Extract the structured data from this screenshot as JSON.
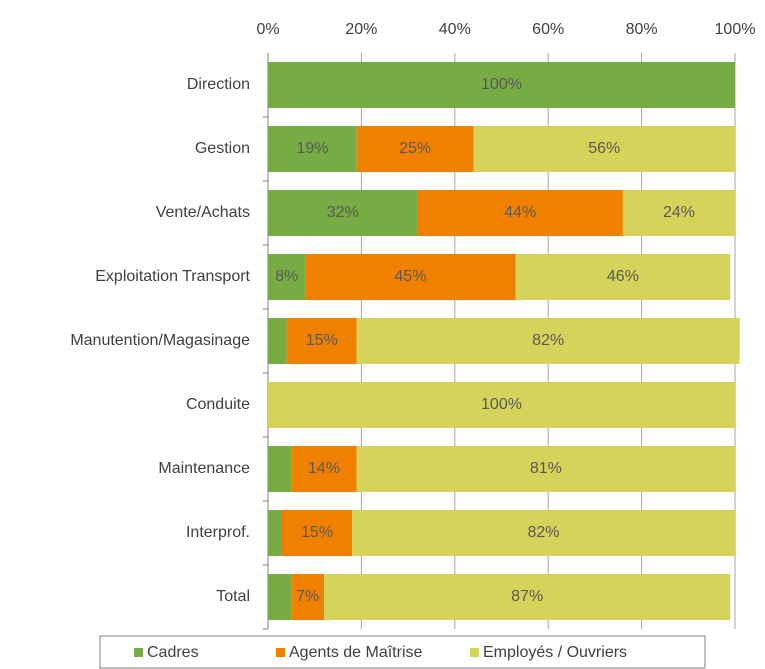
{
  "chart_data": {
    "type": "stacked-barh",
    "categories": [
      "Direction",
      "Gestion",
      "Vente/Achats",
      "Exploitation Transport",
      "Manutention/Magasinage",
      "Conduite",
      "Maintenance",
      "Interprof.",
      "Total"
    ],
    "series": [
      {
        "name": "Cadres",
        "color": "#77ab43",
        "values": [
          100,
          19,
          32,
          8,
          4,
          0,
          5,
          3,
          5
        ],
        "value_labels": [
          "100%",
          "19%",
          "32%",
          "8%",
          null,
          null,
          null,
          null,
          null
        ]
      },
      {
        "name": "Agents de Maîtrise",
        "color": "#f08000",
        "values": [
          0,
          25,
          44,
          45,
          15,
          0,
          14,
          15,
          7
        ],
        "value_labels": [
          null,
          "25%",
          "44%",
          "45%",
          "15%",
          null,
          "14%",
          "15%",
          "7%"
        ]
      },
      {
        "name": "Employés / Ouvriers",
        "color": "#d4d45a",
        "values": [
          0,
          56,
          24,
          46,
          82,
          100,
          81,
          82,
          87
        ],
        "value_labels": [
          null,
          "56%",
          "24%",
          "46%",
          "82%",
          "100%",
          "81%",
          "82%",
          "87%"
        ]
      }
    ],
    "xlim": [
      0,
      100
    ],
    "xticks": [
      {
        "value": 0,
        "label": "0%"
      },
      {
        "value": 20,
        "label": "20%"
      },
      {
        "value": 40,
        "label": "40%"
      },
      {
        "value": 60,
        "label": "60%"
      },
      {
        "value": 80,
        "label": "80%"
      },
      {
        "value": 100,
        "label": "100%"
      }
    ],
    "grid": true,
    "legend": "bottom"
  }
}
